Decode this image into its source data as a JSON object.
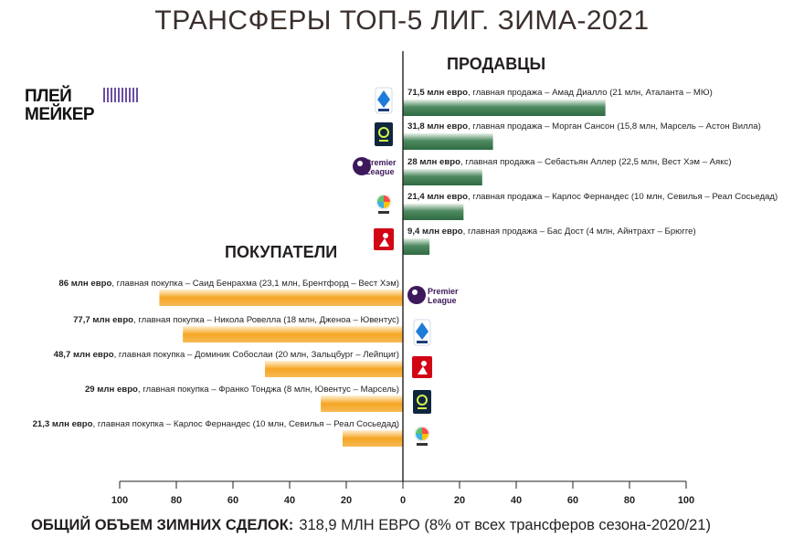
{
  "title": "ТРАНСФЕРЫ ТОП-5 ЛИГ. ЗИМА-2021",
  "brand": {
    "line1": "ПЛЕЙ",
    "line2": "МЕЙКЕР"
  },
  "sellers_label": "ПРОДАВЦЫ",
  "buyers_label": "ПОКУПАТЕЛИ",
  "footer": {
    "label": "ОБЩИЙ ОБЪЕМ ЗИМНИХ СДЕЛОК:",
    "value": "318,9 МЛН ЕВРО (8% от всех трансферов сезона-2020/21)"
  },
  "colors": {
    "sellers_bar": "#4f8a61",
    "buyers_bar": "#f5a623",
    "axis": "#231f20"
  },
  "chart_data": {
    "type": "bar",
    "orientation": "horizontal",
    "xlim": [
      -100,
      100
    ],
    "x_tick_labels": [
      "100",
      "80",
      "60",
      "40",
      "20",
      "0",
      "20",
      "40",
      "60",
      "80",
      "100"
    ],
    "grid": false,
    "sellers": [
      {
        "league": "Serie A",
        "icon": "serie-a-icon",
        "value": 71.5,
        "amount": "71,5 млн евро",
        "note": ", главная продажа – Амад Диалло (21 млн, Аталанта – МЮ)"
      },
      {
        "league": "Ligue 1",
        "icon": "ligue-1-icon",
        "value": 31.8,
        "amount": "31,8 млн евро",
        "note": ", главная продажа – Морган Сансон (15,8 млн, Марсель – Астон Вилла)"
      },
      {
        "league": "Premier League",
        "icon": "premier-league-icon",
        "value": 28,
        "amount": "28 млн евро",
        "note": ", главная продажа – Себастьян Аллер (22,5 млн, Вест Хэм – Аякс)"
      },
      {
        "league": "LaLiga",
        "icon": "laliga-icon",
        "value": 21.4,
        "amount": "21,4 млн евро",
        "note": ", главная продажа – Карлос Фернандес (10 млн, Севилья – Реал Сосьедад)"
      },
      {
        "league": "Bundesliga",
        "icon": "bundesliga-icon",
        "value": 9.4,
        "amount": "9,4 млн евро",
        "note": ", главная продажа – Бас Дост (4 млн, Айнтрахт – Брюгге)"
      }
    ],
    "buyers": [
      {
        "league": "Premier League",
        "icon": "premier-league-icon",
        "value": 86,
        "amount": "86 млн евро",
        "note": ", главная покупка – Саид Бенрахма (23,1 млн, Брентфорд – Вест Хэм)"
      },
      {
        "league": "Serie A",
        "icon": "serie-a-icon",
        "value": 77.7,
        "amount": "77,7 млн евро",
        "note": ", главная покупка – Никола Ровелла (18 млн, Дженоа – Ювентус)"
      },
      {
        "league": "Bundesliga",
        "icon": "bundesliga-icon",
        "value": 48.7,
        "amount": "48,7 млн евро",
        "note": ", главная покупка – Доминик Собослаи (20 млн, Зальцбург – Лейпциг)"
      },
      {
        "league": "Ligue 1",
        "icon": "ligue-1-icon",
        "value": 29,
        "amount": "29 млн евро",
        "note": ", главная покупка – Франко Тонджа (8 млн, Ювентус – Марсель)"
      },
      {
        "league": "LaLiga",
        "icon": "laliga-icon",
        "value": 21.3,
        "amount": "21,3 млн евро",
        "note": ", главная покупка – Карлос Фернандес (10 млн, Севилья – Реал Сосьедад)"
      }
    ]
  }
}
